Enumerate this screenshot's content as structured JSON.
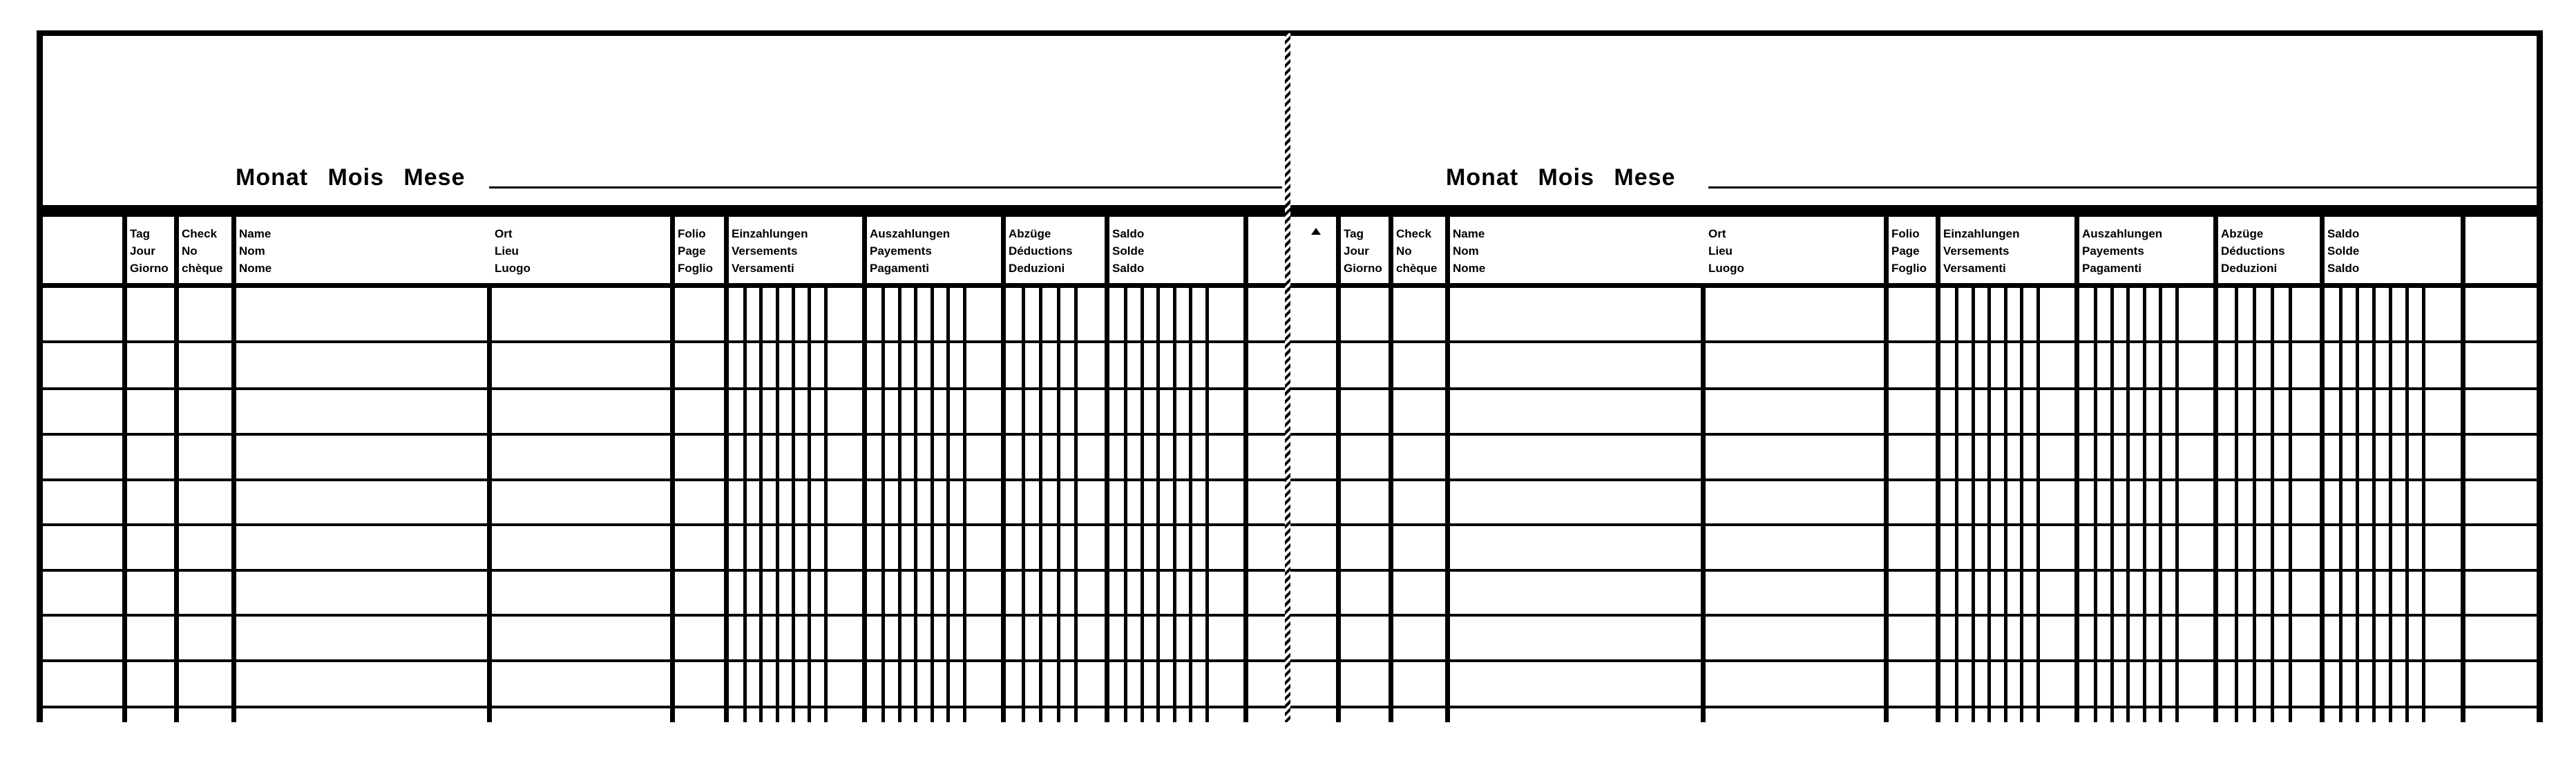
{
  "form": {
    "month_label": "Monat Mois Mese",
    "month_value": "",
    "row_count": 9,
    "columns_left": [
      {
        "key": "blank",
        "lines": []
      },
      {
        "key": "day",
        "lines": [
          "Tag",
          "Jour",
          "Giorno"
        ]
      },
      {
        "key": "check",
        "lines": [
          "Check",
          "No",
          "chèque"
        ]
      },
      {
        "key": "name",
        "lines": [
          "Name",
          "Nom",
          "Nome"
        ]
      },
      {
        "key": "place",
        "lines": [
          "Ort",
          "Lieu",
          "Luogo"
        ]
      },
      {
        "key": "folio",
        "lines": [
          "Folio",
          "Page",
          "Foglio"
        ]
      },
      {
        "key": "deposits",
        "lines": [
          "Einzahlungen",
          "Versements",
          "Versamenti"
        ]
      },
      {
        "key": "payments",
        "lines": [
          "Auszahlungen",
          "Payements",
          "Pagamenti"
        ]
      },
      {
        "key": "deductions",
        "lines": [
          "Abzüge",
          "Déductions",
          "Deduzioni"
        ]
      },
      {
        "key": "balance",
        "lines": [
          "Saldo",
          "Solde",
          "Saldo"
        ]
      },
      {
        "key": "blank_end",
        "lines": []
      }
    ],
    "columns_right": [
      {
        "key": "marker",
        "lines": [],
        "icon": "triangle-icon"
      },
      {
        "key": "day",
        "lines": [
          "Tag",
          "Jour",
          "Giorno"
        ]
      },
      {
        "key": "check",
        "lines": [
          "Check",
          "No",
          "chèque"
        ]
      },
      {
        "key": "name",
        "lines": [
          "Name",
          "Nom",
          "Nome"
        ]
      },
      {
        "key": "place",
        "lines": [
          "Ort",
          "Lieu",
          "Luogo"
        ]
      },
      {
        "key": "folio",
        "lines": [
          "Folio",
          "Page",
          "Foglio"
        ]
      },
      {
        "key": "deposits",
        "lines": [
          "Einzahlungen",
          "Versements",
          "Versamenti"
        ]
      },
      {
        "key": "payments",
        "lines": [
          "Auszahlungen",
          "Payements",
          "Pagamenti"
        ]
      },
      {
        "key": "deductions",
        "lines": [
          "Abzüge",
          "Déductions",
          "Deduzioni"
        ]
      },
      {
        "key": "balance",
        "lines": [
          "Saldo",
          "Solde",
          "Saldo"
        ]
      },
      {
        "key": "blank_end",
        "lines": []
      }
    ],
    "ink_color": "#000000",
    "paper_color": "#ffffff"
  }
}
